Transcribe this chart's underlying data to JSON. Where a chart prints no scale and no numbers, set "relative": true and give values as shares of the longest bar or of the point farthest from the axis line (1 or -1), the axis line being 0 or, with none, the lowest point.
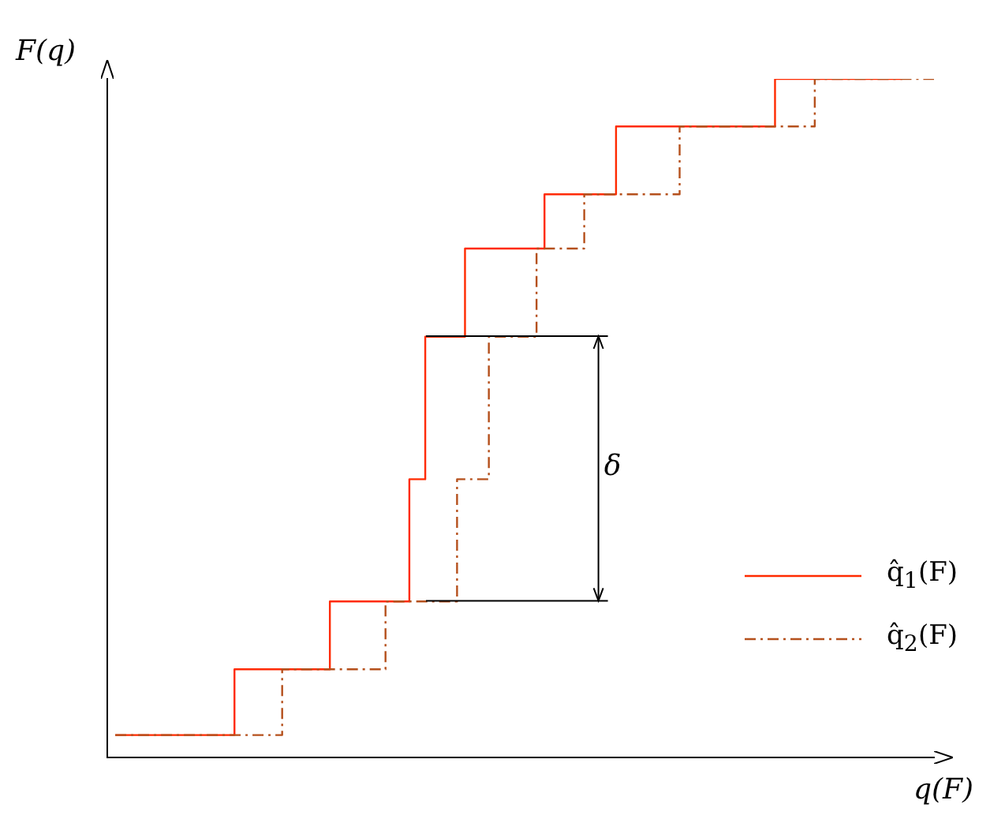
{
  "chart_data": {
    "type": "step",
    "relative": true,
    "xlabel": "q(F)",
    "ylabel": "F(q)",
    "legend": "bottom right",
    "grid": false,
    "categories": [
      null,
      null,
      null,
      null,
      null,
      null,
      null,
      null,
      null,
      null,
      null,
      null,
      null,
      null,
      null,
      null,
      null,
      null,
      null,
      null,
      null,
      null,
      null,
      null,
      null,
      null,
      null,
      null,
      null,
      null,
      null,
      null,
      null,
      null,
      null,
      null,
      null,
      null,
      null,
      null,
      null,
      null,
      null,
      null,
      null,
      null,
      null,
      null,
      null,
      null,
      null,
      null,
      null,
      null,
      null,
      null,
      null,
      null,
      null,
      null,
      null,
      null,
      null,
      null,
      null,
      null,
      null,
      null,
      null,
      null,
      null,
      null,
      null,
      null,
      null,
      null,
      null,
      null,
      null,
      null,
      null,
      null,
      null,
      null,
      null,
      null,
      null,
      null,
      null,
      null,
      null,
      null,
      null,
      null,
      null,
      null,
      null,
      null,
      null,
      null,
      null,
      null,
      null,
      null,
      null
    ],
    "series": [
      {
        "name": "q̂$_{1}$(F)",
        "color": "#ff2a00",
        "line_style": "solid",
        "values": [
          null,
          0.033,
          0.033,
          0.033,
          0.033,
          0.033,
          0.033,
          0.033,
          0.033,
          0.033,
          0.033,
          0.033,
          0.033,
          0.033,
          0.033,
          0.033,
          0.13,
          0.13,
          0.13,
          0.13,
          0.13,
          0.13,
          0.13,
          0.13,
          0.13,
          0.13,
          0.13,
          0.13,
          0.23,
          0.23,
          0.23,
          0.23,
          0.23,
          0.23,
          0.23,
          0.23,
          0.23,
          0.23,
          0.41,
          0.41,
          0.62,
          0.62,
          0.62,
          0.62,
          0.62,
          0.75,
          0.75,
          0.75,
          0.75,
          0.75,
          0.75,
          0.75,
          0.75,
          0.75,
          0.75,
          0.83,
          0.83,
          0.83,
          0.83,
          0.83,
          0.83,
          0.83,
          0.83,
          0.83,
          0.93,
          0.93,
          0.93,
          0.93,
          0.93,
          0.93,
          0.93,
          0.93,
          0.93,
          0.93,
          0.93,
          0.93,
          0.93,
          0.93,
          0.93,
          0.93,
          0.93,
          0.93,
          0.93,
          0.93,
          1,
          1,
          1,
          1,
          1,
          1,
          1,
          1,
          1,
          1,
          1,
          1,
          1,
          1,
          1,
          1,
          1,
          null,
          null,
          null,
          null
        ]
      },
      {
        "name": "q̂$_{2}$(F)",
        "color": "#b5501c",
        "line_style": "dashed",
        "values": [
          null,
          0.033,
          0.033,
          0.033,
          0.033,
          0.033,
          0.033,
          0.033,
          0.033,
          0.033,
          0.033,
          0.033,
          0.033,
          0.033,
          0.033,
          0.033,
          0.033,
          0.033,
          0.033,
          0.033,
          0.033,
          0.033,
          0.13,
          0.13,
          0.13,
          0.13,
          0.13,
          0.13,
          0.13,
          0.13,
          0.13,
          0.13,
          0.13,
          0.13,
          0.13,
          0.23,
          0.23,
          0.23,
          0.23,
          0.23,
          0.23,
          0.23,
          0.23,
          0.23,
          0.41,
          0.41,
          0.41,
          0.41,
          0.62,
          0.62,
          0.62,
          0.62,
          0.62,
          0.62,
          0.75,
          0.75,
          0.75,
          0.75,
          0.75,
          0.75,
          0.83,
          0.83,
          0.83,
          0.83,
          0.83,
          0.83,
          0.83,
          0.83,
          0.83,
          0.83,
          0.83,
          0.83,
          0.93,
          0.93,
          0.93,
          0.93,
          0.93,
          0.93,
          0.93,
          0.93,
          0.93,
          0.93,
          0.93,
          0.93,
          0.93,
          0.93,
          0.93,
          0.93,
          0.93,
          1,
          1,
          1,
          1,
          1,
          1,
          1,
          1,
          1,
          1,
          1,
          1,
          1,
          1,
          1,
          1
        ]
      }
    ],
    "annotations": [
      "δ"
    ]
  }
}
